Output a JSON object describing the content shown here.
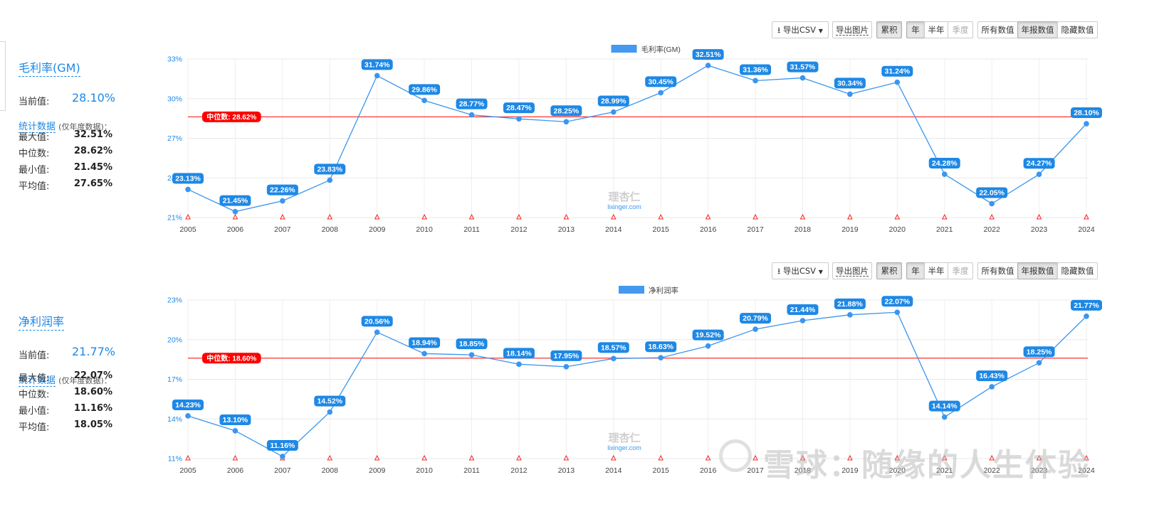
{
  "toolbar": {
    "export_csv": "导出CSV",
    "export_image": "导出图片",
    "cumulative": "累积",
    "periods": [
      "年",
      "半年",
      "季度"
    ],
    "value_modes": [
      "所有数值",
      "年报数值",
      "隐藏数值"
    ]
  },
  "panels": [
    {
      "title": "毛利率(GM)",
      "current_label": "当前值:",
      "current_value": "28.10%",
      "stats_title": "统计数据",
      "stats_note": "(仅年度数据)：",
      "stats": [
        {
          "label": "最大值:",
          "value": "32.51%"
        },
        {
          "label": "中位数:",
          "value": "28.62%"
        },
        {
          "label": "最小值:",
          "value": "21.45%"
        },
        {
          "label": "平均值:",
          "value": "27.65%"
        }
      ]
    },
    {
      "title": "净利润率",
      "current_label": "当前值:",
      "current_value": "21.77%",
      "stats_title": "统计数据",
      "stats_note": "(仅年度数据)：",
      "stats": [
        {
          "label": "最大值:",
          "value": "22.07%"
        },
        {
          "label": "中位数:",
          "value": "18.60%"
        },
        {
          "label": "最小值:",
          "value": "11.16%"
        },
        {
          "label": "平均值:",
          "value": "18.05%"
        }
      ]
    }
  ],
  "chart_data": [
    {
      "type": "line",
      "legend": "毛利率(GM)",
      "x": [
        "2005",
        "2006",
        "2007",
        "2008",
        "2009",
        "2010",
        "2011",
        "2012",
        "2013",
        "2014",
        "2015",
        "2016",
        "2017",
        "2018",
        "2019",
        "2020",
        "2021",
        "2022",
        "2023",
        "2024"
      ],
      "series": [
        {
          "name": "毛利率(GM)",
          "values": [
            23.13,
            21.45,
            22.26,
            23.83,
            31.74,
            29.86,
            28.77,
            28.47,
            28.25,
            28.99,
            30.45,
            32.51,
            31.36,
            31.57,
            30.34,
            31.24,
            24.28,
            22.05,
            24.27,
            28.1
          ]
        }
      ],
      "y_ticks": [
        "33%",
        "30%",
        "27%",
        "24%",
        "21%"
      ],
      "ylim": [
        21,
        33
      ],
      "median": 28.62,
      "median_label": "中位数: 28.62%",
      "watermark": {
        "cn": "理杏仁",
        "en": "lixinger.com"
      },
      "colors": {
        "line": "#3a96ee",
        "label_bg": "#1e88e5",
        "median": "#ff3333"
      }
    },
    {
      "type": "line",
      "legend": "净利润率",
      "x": [
        "2005",
        "2006",
        "2007",
        "2008",
        "2009",
        "2010",
        "2011",
        "2012",
        "2013",
        "2014",
        "2015",
        "2016",
        "2017",
        "2018",
        "2019",
        "2020",
        "2021",
        "2022",
        "2023",
        "2024"
      ],
      "series": [
        {
          "name": "净利润率",
          "values": [
            14.23,
            13.1,
            11.16,
            14.52,
            20.56,
            18.94,
            18.85,
            18.14,
            17.95,
            18.57,
            18.63,
            19.52,
            20.79,
            21.44,
            21.88,
            22.07,
            14.14,
            16.43,
            18.25,
            21.77
          ]
        }
      ],
      "y_ticks": [
        "23%",
        "20%",
        "17%",
        "14%",
        "11%"
      ],
      "ylim": [
        11,
        23
      ],
      "median": 18.6,
      "median_label": "中位数: 18.60%",
      "watermark": {
        "cn": "理杏仁",
        "en": "lixinger.com"
      },
      "colors": {
        "line": "#3a96ee",
        "label_bg": "#1e88e5",
        "median": "#ff3333"
      }
    }
  ],
  "page_watermark": "雪球：随缘的人生体验"
}
